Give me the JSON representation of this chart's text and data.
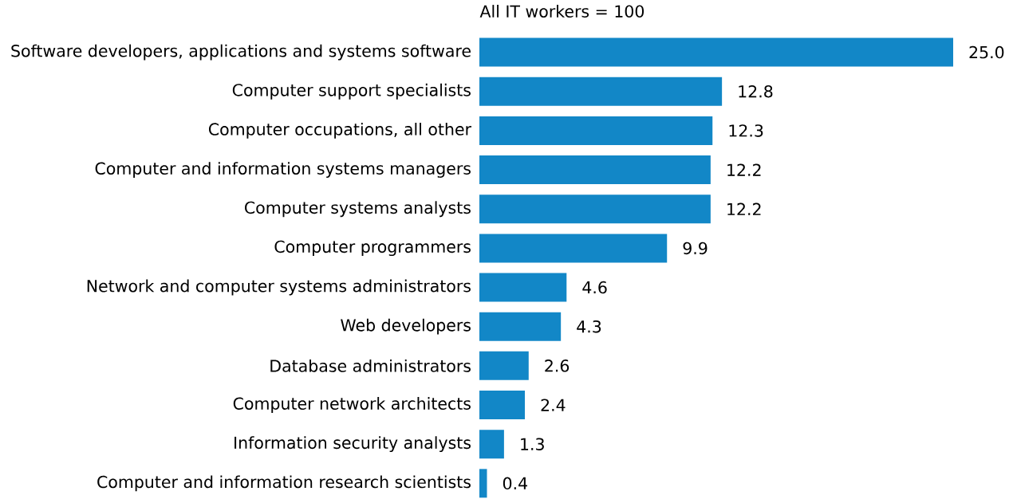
{
  "chart_data": {
    "type": "bar",
    "orientation": "horizontal",
    "title": "All IT workers = 100",
    "categories": [
      "Software developers, applications and systems software",
      "Computer support specialists",
      "Computer occupations, all other",
      "Computer and information systems managers",
      "Computer systems analysts",
      "Computer programmers",
      "Network and computer systems administrators",
      "Web developers",
      "Database administrators",
      "Computer network architects",
      "Information security analysts",
      "Computer and information research scientists"
    ],
    "values": [
      25.0,
      12.8,
      12.3,
      12.2,
      12.2,
      9.9,
      4.6,
      4.3,
      2.6,
      2.4,
      1.3,
      0.4
    ],
    "value_labels": [
      "25.0",
      "12.8",
      "12.3",
      "12.2",
      "12.2",
      "9.9",
      "4.6",
      "4.3",
      "2.6",
      "2.4",
      "1.3",
      "0.4"
    ],
    "color": "#1287c7"
  }
}
